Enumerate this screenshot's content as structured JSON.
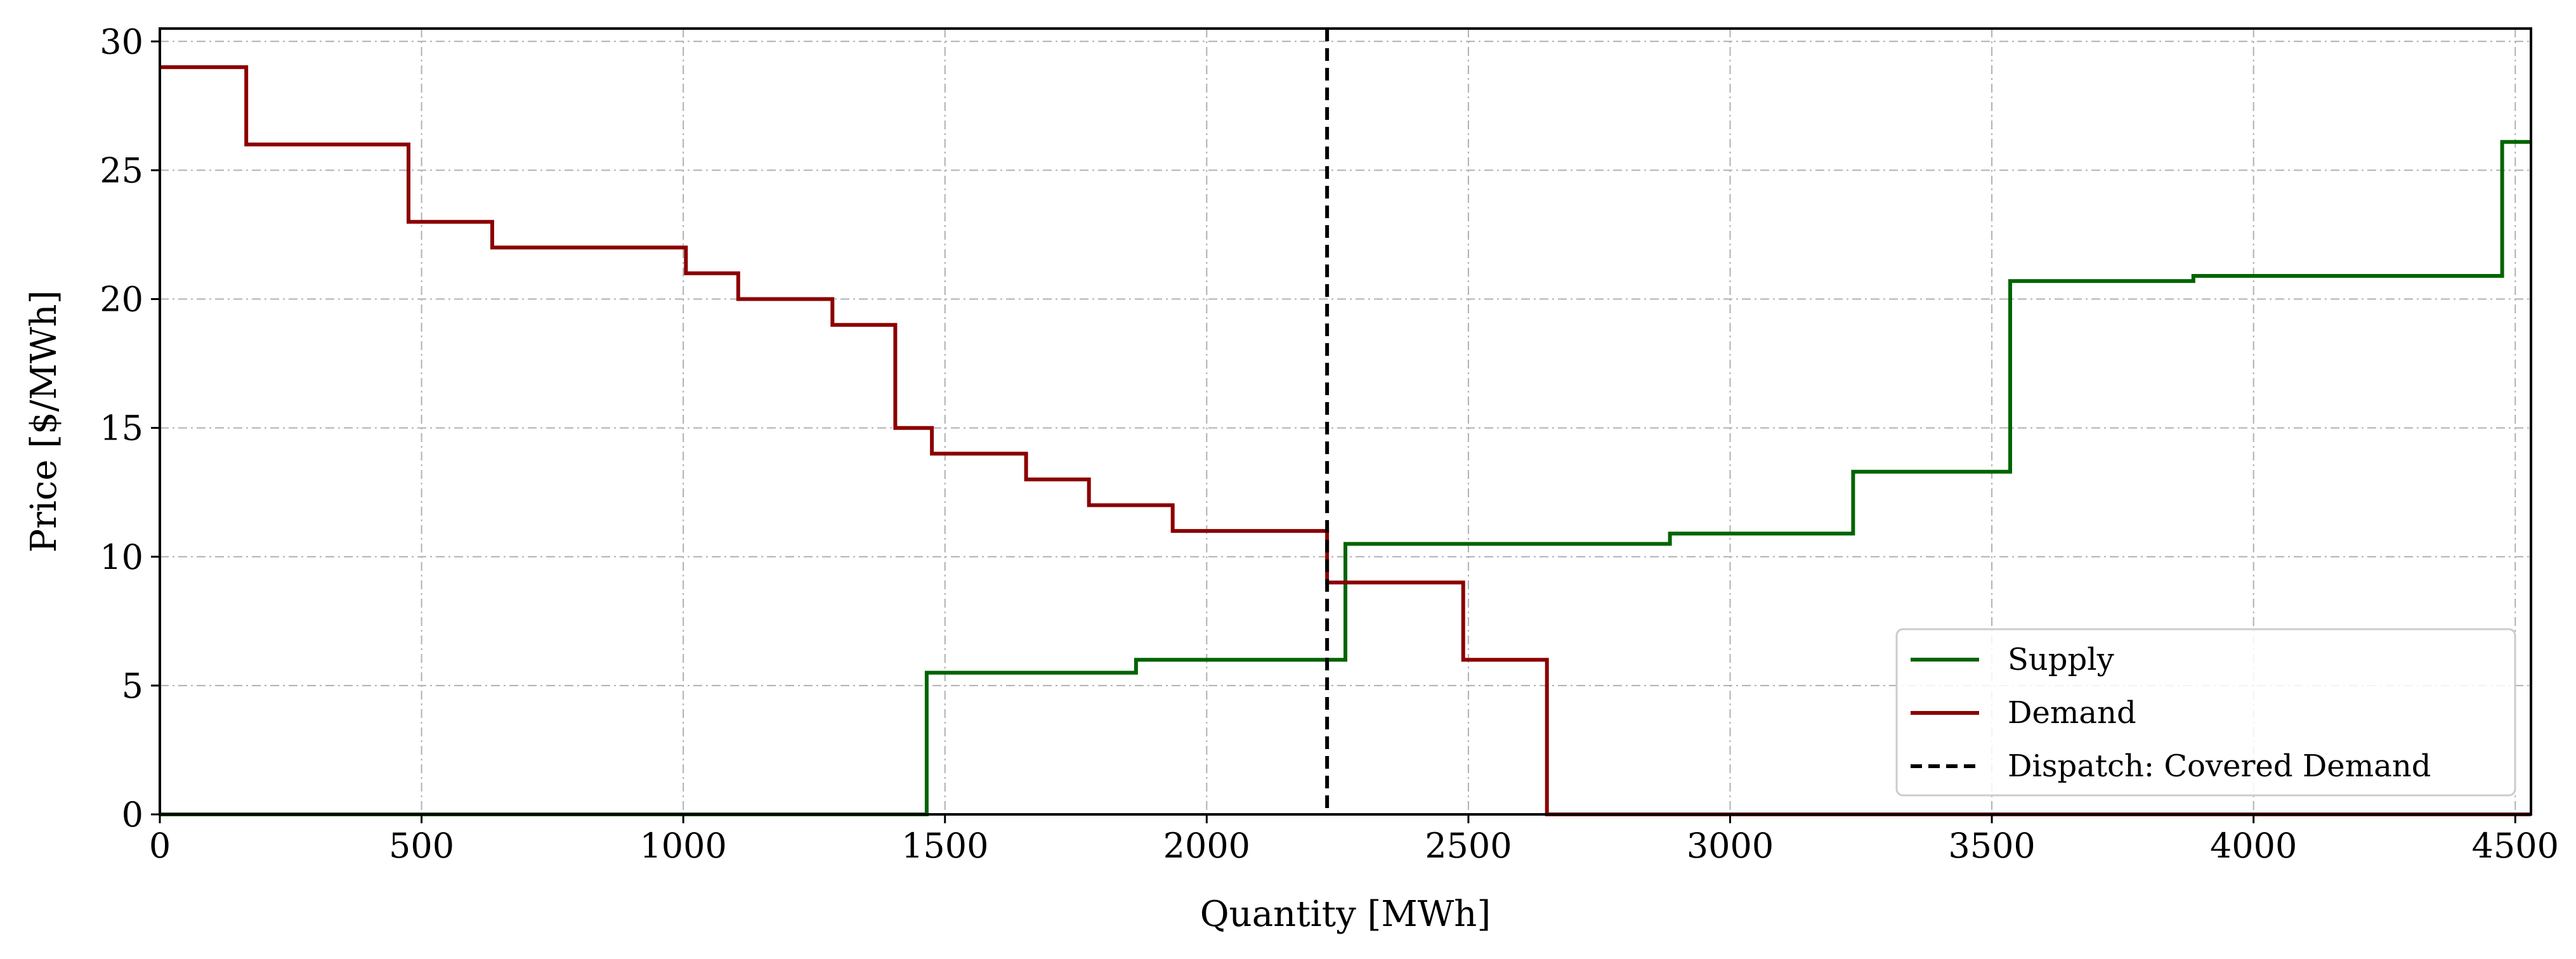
{
  "chart_data": {
    "type": "line",
    "xlabel": "Quantity [MWh]",
    "ylabel": "Price [$/MWh]",
    "xlim": [
      0,
      4530
    ],
    "ylim": [
      0,
      30.5
    ],
    "xticks": [
      0,
      500,
      1000,
      1500,
      2000,
      2500,
      3000,
      3500,
      4000,
      4500
    ],
    "yticks": [
      0,
      5,
      10,
      15,
      20,
      25,
      30
    ],
    "grid": true,
    "legend_position": "lower-right",
    "series": [
      {
        "name": "Supply",
        "color": "#006400",
        "step": true,
        "x": [
          0,
          1465,
          1465,
          1865,
          1865,
          2265,
          2265,
          2885,
          2885,
          3235,
          3235,
          3535,
          3535,
          3885,
          3885,
          4475,
          4475,
          4530
        ],
        "y": [
          0,
          0,
          5.5,
          5.5,
          6,
          6,
          10.5,
          10.5,
          10.9,
          10.9,
          13.3,
          13.3,
          20.7,
          20.7,
          20.9,
          20.9,
          26.1,
          26.1
        ]
      },
      {
        "name": "Demand",
        "color": "#8b0000",
        "step": true,
        "x": [
          0,
          165,
          165,
          475,
          475,
          635,
          635,
          1005,
          1005,
          1105,
          1105,
          1285,
          1285,
          1405,
          1405,
          1475,
          1475,
          1655,
          1655,
          1775,
          1775,
          1935,
          1935,
          2230,
          2230,
          2490,
          2490,
          2650,
          2650,
          4530
        ],
        "y": [
          29,
          29,
          26,
          26,
          23,
          23,
          22,
          22,
          21,
          21,
          20,
          20,
          19,
          19,
          15,
          15,
          14,
          14,
          13,
          13,
          12,
          12,
          11,
          11,
          9,
          9,
          6,
          6,
          0,
          0
        ]
      }
    ],
    "vlines": [
      {
        "name": "Dispatch: Covered Demand",
        "x": 2230,
        "color": "#000000",
        "style": "dashed"
      }
    ]
  }
}
